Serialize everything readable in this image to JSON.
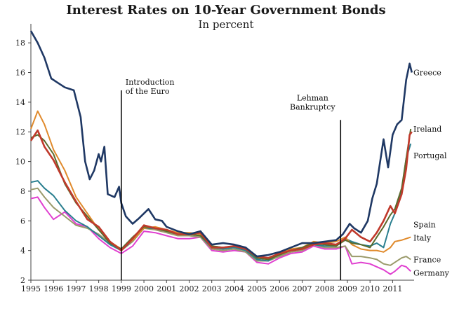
{
  "chart_data": {
    "type": "line",
    "title": "Interest Rates on 10-Year Government Bonds",
    "subtitle": "In percent",
    "xlabel": "",
    "ylabel": "",
    "xlim": [
      1995,
      2011.95
    ],
    "ylim": [
      2,
      19
    ],
    "yticks": [
      2,
      4,
      6,
      8,
      10,
      12,
      14,
      16,
      18
    ],
    "xticks": [
      1995,
      1996,
      1997,
      1998,
      1999,
      2000,
      2001,
      2002,
      2003,
      2004,
      2005,
      2006,
      2007,
      2008,
      2009,
      2010,
      2011
    ],
    "grid": false,
    "annotations": [
      {
        "lines": [
          "Introduction",
          "of the Euro"
        ],
        "x": 1999.0,
        "y_top": 14.8
      },
      {
        "lines": [
          "Lehman",
          "Bankruptcy"
        ],
        "x": 2008.7,
        "y_top": 12.8
      }
    ],
    "series": [
      {
        "name": "Greece",
        "color": "#1f3864",
        "x": [
          1995.0,
          1995.3,
          1995.6,
          1995.9,
          1996.2,
          1996.5,
          1996.9,
          1997.2,
          1997.4,
          1997.6,
          1997.8,
          1998.0,
          1998.1,
          1998.25,
          1998.4,
          1998.7,
          1998.9,
          1999.0,
          1999.2,
          1999.5,
          1999.8,
          2000.2,
          2000.5,
          2000.8,
          2001.0,
          2001.5,
          2002.0,
          2002.5,
          2003.0,
          2003.5,
          2004.0,
          2004.5,
          2005.0,
          2005.5,
          2006.0,
          2006.5,
          2007.0,
          2007.5,
          2008.0,
          2008.5,
          2008.8,
          2009.1,
          2009.3,
          2009.6,
          2009.9,
          2010.1,
          2010.3,
          2010.6,
          2010.8,
          2011.0,
          2011.2,
          2011.4,
          2011.6,
          2011.75,
          2011.85
        ],
        "values": [
          18.8,
          18.0,
          17.0,
          15.6,
          15.3,
          15.0,
          14.8,
          13.0,
          10.0,
          8.8,
          9.4,
          10.5,
          10.0,
          11.0,
          7.8,
          7.6,
          8.3,
          7.2,
          6.3,
          5.8,
          6.2,
          6.8,
          6.1,
          6.0,
          5.6,
          5.3,
          5.1,
          5.3,
          4.4,
          4.5,
          4.4,
          4.2,
          3.6,
          3.7,
          3.9,
          4.2,
          4.5,
          4.5,
          4.6,
          4.7,
          5.1,
          5.8,
          5.5,
          5.2,
          6.0,
          7.5,
          8.5,
          11.5,
          9.6,
          11.8,
          12.5,
          12.8,
          15.5,
          16.6,
          16.0
        ]
      },
      {
        "name": "Ireland",
        "color": "#c0392b",
        "x": [
          1995.0,
          1995.3,
          1995.6,
          1996.0,
          1996.5,
          1997.0,
          1997.5,
          1998.0,
          1998.5,
          1999.0,
          1999.5,
          2000.0,
          2000.5,
          2001.0,
          2001.5,
          2002.0,
          2002.5,
          2003.0,
          2003.5,
          2004.0,
          2004.5,
          2005.0,
          2005.5,
          2006.0,
          2006.5,
          2007.0,
          2007.5,
          2008.0,
          2008.5,
          2008.9,
          2009.2,
          2009.6,
          2010.0,
          2010.3,
          2010.6,
          2010.9,
          2011.1,
          2011.4,
          2011.6,
          2011.75,
          2011.85
        ],
        "values": [
          11.4,
          12.1,
          11.0,
          10.1,
          8.6,
          7.3,
          6.1,
          5.6,
          4.6,
          4.0,
          4.8,
          5.7,
          5.5,
          5.4,
          5.1,
          5.1,
          5.2,
          4.2,
          4.2,
          4.3,
          4.1,
          3.6,
          3.5,
          3.8,
          4.0,
          4.1,
          4.4,
          4.5,
          4.4,
          4.8,
          5.4,
          4.9,
          4.6,
          5.2,
          6.0,
          7.0,
          6.5,
          7.8,
          9.5,
          11.8,
          12.0
        ]
      },
      {
        "name": "Portugal",
        "color": "#5b6b2c",
        "x": [
          1995.0,
          1995.3,
          1995.6,
          1996.0,
          1996.5,
          1997.0,
          1997.5,
          1998.0,
          1998.5,
          1999.0,
          1999.5,
          2000.0,
          2000.5,
          2001.0,
          2001.5,
          2002.0,
          2002.5,
          2003.0,
          2003.5,
          2004.0,
          2004.5,
          2005.0,
          2005.5,
          2006.0,
          2006.5,
          2007.0,
          2007.5,
          2008.0,
          2008.5,
          2008.9,
          2009.2,
          2009.6,
          2010.0,
          2010.3,
          2010.6,
          2010.9,
          2011.1,
          2011.4,
          2011.6,
          2011.8
        ],
        "values": [
          11.6,
          11.8,
          11.4,
          10.5,
          8.5,
          7.2,
          6.3,
          5.4,
          4.5,
          4.1,
          4.9,
          5.6,
          5.5,
          5.3,
          5.1,
          5.1,
          5.0,
          4.3,
          4.2,
          4.3,
          4.1,
          3.5,
          3.4,
          3.7,
          4.0,
          4.2,
          4.5,
          4.4,
          4.3,
          4.7,
          4.5,
          4.4,
          4.2,
          4.9,
          5.6,
          6.4,
          6.8,
          8.2,
          10.2,
          12.2
        ]
      },
      {
        "name": "Spain",
        "color": "#2a7f8f",
        "x": [
          1995.0,
          1995.3,
          1995.6,
          1996.0,
          1996.5,
          1997.0,
          1997.5,
          1998.0,
          1998.5,
          1999.0,
          1999.5,
          2000.0,
          2000.5,
          2001.0,
          2001.5,
          2002.0,
          2002.5,
          2003.0,
          2003.5,
          2004.0,
          2004.5,
          2005.0,
          2005.5,
          2006.0,
          2006.5,
          2007.0,
          2007.5,
          2008.0,
          2008.5,
          2008.9,
          2009.2,
          2009.6,
          2010.0,
          2010.3,
          2010.6,
          2010.9,
          2011.1,
          2011.4,
          2011.6,
          2011.8
        ],
        "values": [
          8.6,
          8.7,
          8.2,
          7.7,
          6.7,
          6.0,
          5.6,
          5.0,
          4.4,
          4.0,
          4.7,
          5.5,
          5.5,
          5.3,
          5.1,
          5.1,
          5.0,
          4.2,
          4.1,
          4.2,
          4.0,
          3.4,
          3.3,
          3.8,
          4.0,
          4.1,
          4.4,
          4.3,
          4.3,
          4.8,
          4.6,
          4.4,
          4.3,
          4.5,
          4.2,
          5.8,
          6.5,
          8.0,
          10.2,
          11.2
        ]
      },
      {
        "name": "Italy",
        "color": "#e08a2c",
        "x": [
          1995.0,
          1995.3,
          1995.6,
          1996.0,
          1996.5,
          1997.0,
          1997.5,
          1998.0,
          1998.5,
          1999.0,
          1999.5,
          2000.0,
          2000.5,
          2001.0,
          2001.5,
          2002.0,
          2002.5,
          2003.0,
          2003.5,
          2004.0,
          2004.5,
          2005.0,
          2005.5,
          2006.0,
          2006.5,
          2007.0,
          2007.5,
          2008.0,
          2008.5,
          2008.9,
          2009.2,
          2009.6,
          2010.0,
          2010.3,
          2010.6,
          2010.9,
          2011.1,
          2011.4,
          2011.6,
          2011.8
        ],
        "values": [
          12.2,
          13.4,
          12.5,
          10.8,
          9.4,
          7.6,
          6.5,
          5.4,
          4.6,
          4.1,
          4.7,
          5.5,
          5.6,
          5.4,
          5.2,
          5.2,
          5.1,
          4.3,
          4.2,
          4.3,
          4.1,
          3.5,
          3.4,
          3.9,
          4.1,
          4.2,
          4.6,
          4.5,
          4.6,
          4.9,
          4.4,
          4.1,
          4.0,
          4.0,
          3.9,
          4.2,
          4.6,
          4.7,
          4.8,
          4.9
        ]
      },
      {
        "name": "France",
        "color": "#9a9a6a",
        "x": [
          1995.0,
          1995.3,
          1995.6,
          1996.0,
          1996.5,
          1997.0,
          1997.5,
          1998.0,
          1998.5,
          1999.0,
          1999.5,
          2000.0,
          2000.5,
          2001.0,
          2001.5,
          2002.0,
          2002.5,
          2003.0,
          2003.5,
          2004.0,
          2004.5,
          2005.0,
          2005.5,
          2006.0,
          2006.5,
          2007.0,
          2007.5,
          2008.0,
          2008.5,
          2008.9,
          2009.2,
          2009.6,
          2010.0,
          2010.3,
          2010.6,
          2010.9,
          2011.1,
          2011.4,
          2011.6,
          2011.8
        ],
        "values": [
          8.1,
          8.2,
          7.6,
          6.9,
          6.3,
          5.7,
          5.5,
          5.1,
          4.5,
          4.0,
          4.6,
          5.5,
          5.4,
          5.2,
          5.0,
          5.0,
          4.9,
          4.1,
          4.0,
          4.1,
          3.9,
          3.3,
          3.3,
          3.6,
          3.9,
          4.0,
          4.4,
          4.2,
          4.2,
          4.3,
          3.6,
          3.6,
          3.5,
          3.4,
          3.1,
          3.0,
          3.2,
          3.5,
          3.6,
          3.4
        ]
      },
      {
        "name": "Germany",
        "color": "#e040d0",
        "x": [
          1995.0,
          1995.3,
          1995.6,
          1996.0,
          1996.5,
          1997.0,
          1997.5,
          1998.0,
          1998.5,
          1999.0,
          1999.5,
          2000.0,
          2000.5,
          2001.0,
          2001.5,
          2002.0,
          2002.5,
          2003.0,
          2003.5,
          2004.0,
          2004.5,
          2005.0,
          2005.5,
          2006.0,
          2006.5,
          2007.0,
          2007.5,
          2008.0,
          2008.5,
          2008.9,
          2009.2,
          2009.6,
          2010.0,
          2010.3,
          2010.6,
          2010.9,
          2011.1,
          2011.4,
          2011.6,
          2011.8
        ],
        "values": [
          7.5,
          7.6,
          6.9,
          6.1,
          6.6,
          5.8,
          5.6,
          4.8,
          4.2,
          3.8,
          4.3,
          5.3,
          5.2,
          5.0,
          4.8,
          4.8,
          4.9,
          4.0,
          3.9,
          4.0,
          3.9,
          3.2,
          3.1,
          3.5,
          3.8,
          3.9,
          4.3,
          4.1,
          4.1,
          4.3,
          3.1,
          3.2,
          3.1,
          2.9,
          2.7,
          2.4,
          2.6,
          3.0,
          2.9,
          2.6
        ]
      }
    ]
  }
}
